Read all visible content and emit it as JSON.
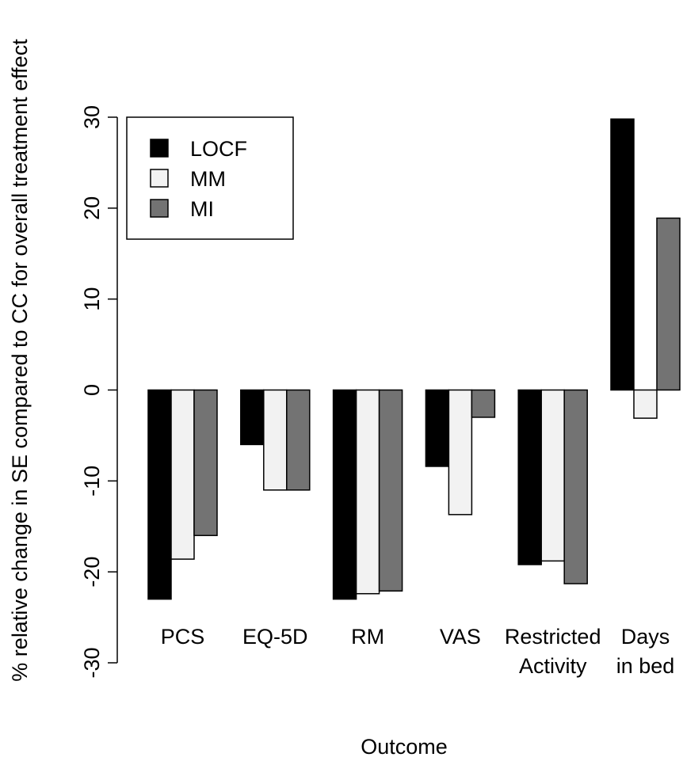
{
  "chart_data": {
    "type": "bar",
    "ylabel": "% relative change in SE compared to CC for overall treatment effect",
    "xlabel": "Outcome",
    "ylim": [
      -30,
      30
    ],
    "yticks": [
      -30,
      -20,
      -10,
      0,
      10,
      20,
      30
    ],
    "ytick_labels": [
      "-30",
      "-20",
      "-10",
      "0",
      "10",
      "20",
      "30"
    ],
    "categories": [
      [
        "PCS"
      ],
      [
        "EQ-5D"
      ],
      [
        "RM"
      ],
      [
        "VAS"
      ],
      [
        "Restricted",
        "Activity"
      ],
      [
        "Days",
        "in bed"
      ]
    ],
    "series": [
      {
        "name": "LOCF",
        "color": "#000000",
        "values": [
          -23,
          -6,
          -23,
          -8.4,
          -19.2,
          29.8
        ]
      },
      {
        "name": "MM",
        "color": "#f2f2f2",
        "values": [
          -18.6,
          -11,
          -22.4,
          -13.7,
          -18.8,
          -3.1
        ]
      },
      {
        "name": "MI",
        "color": "#737373",
        "values": [
          -16,
          -11,
          -22.1,
          -3,
          -21.3,
          18.9
        ]
      }
    ],
    "legend_position": "top-left",
    "grid": false
  }
}
